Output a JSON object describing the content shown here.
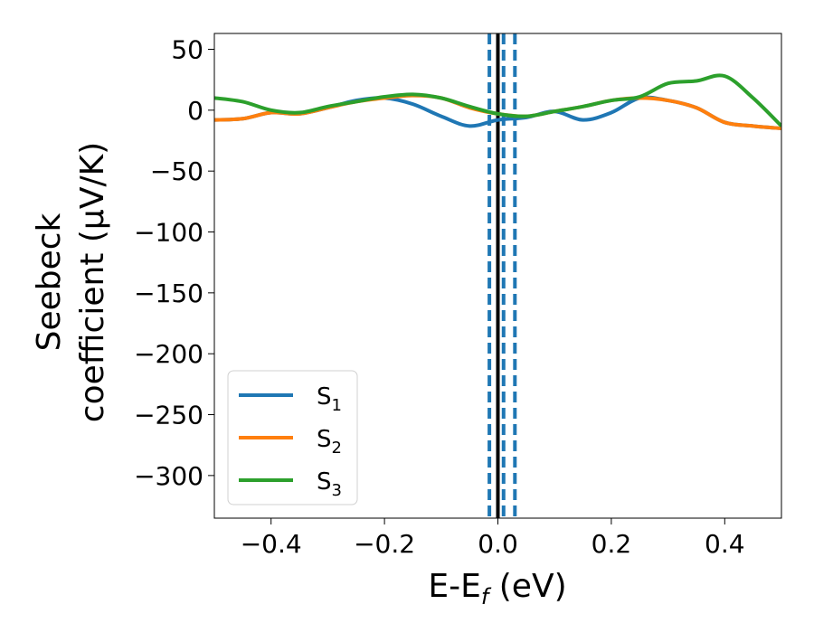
{
  "chart_data": {
    "type": "line",
    "title": "",
    "xlabel": {
      "main": "E-E",
      "sub": "f",
      "tail": " (eV)"
    },
    "ylabel": {
      "line1": "Seebeck",
      "line2": "coefficient  (μV/K)"
    },
    "xlim": [
      -0.5,
      0.5
    ],
    "ylim": [
      -335,
      63
    ],
    "xticks": [
      -0.4,
      -0.2,
      0.0,
      0.2,
      0.4
    ],
    "xtick_labels": [
      "−0.4",
      "−0.2",
      "0.0",
      "0.2",
      "0.4"
    ],
    "yticks": [
      50,
      0,
      -50,
      -100,
      -150,
      -200,
      -250,
      -300
    ],
    "ytick_labels": [
      "50",
      "0",
      "−50",
      "−100",
      "−150",
      "−200",
      "−250",
      "−300"
    ],
    "legend_position": "lower-left",
    "vlines": [
      {
        "x": -0.015,
        "style": "dashed",
        "color": "#1f77b4"
      },
      {
        "x": 0.0,
        "style": "solid",
        "color": "#000000"
      },
      {
        "x": 0.01,
        "style": "dashed",
        "color": "#1f77b4"
      },
      {
        "x": 0.03,
        "style": "dashed",
        "color": "#1f77b4"
      }
    ],
    "series": [
      {
        "name": "S",
        "sub": "1",
        "color": "#1f77b4",
        "x": [
          -0.5,
          -0.45,
          -0.4,
          -0.35,
          -0.3,
          -0.25,
          -0.2,
          -0.15,
          -0.1,
          -0.05,
          0.0,
          0.05,
          0.1,
          0.15,
          0.2,
          0.25,
          0.3,
          0.35,
          0.4,
          0.45,
          0.5
        ],
        "y": [
          -8,
          -7,
          -2,
          -3,
          2,
          8,
          10,
          5,
          -5,
          -13,
          -8,
          -6,
          -1,
          -8,
          -2,
          10,
          8,
          2,
          -10,
          -13,
          -15
        ]
      },
      {
        "name": "S",
        "sub": "2",
        "color": "#ff7f0e",
        "x": [
          -0.5,
          -0.45,
          -0.4,
          -0.35,
          -0.3,
          -0.25,
          -0.2,
          -0.15,
          -0.1,
          -0.05,
          0.0,
          0.05,
          0.1,
          0.15,
          0.2,
          0.25,
          0.3,
          0.35,
          0.4,
          0.45,
          0.5
        ],
        "y": [
          -8,
          -7,
          -2,
          -3,
          2,
          7,
          10,
          12,
          10,
          2,
          -3,
          -5,
          -1,
          3,
          8,
          10,
          8,
          2,
          -10,
          -13,
          -15
        ]
      },
      {
        "name": "S",
        "sub": "3",
        "color": "#2ca02c",
        "x": [
          -0.5,
          -0.45,
          -0.4,
          -0.35,
          -0.3,
          -0.25,
          -0.2,
          -0.15,
          -0.1,
          -0.05,
          0.0,
          0.05,
          0.1,
          0.15,
          0.2,
          0.25,
          0.3,
          0.35,
          0.4,
          0.45,
          0.5
        ],
        "y": [
          10,
          7,
          0,
          -2,
          3,
          7,
          11,
          13,
          10,
          3,
          -3,
          -5,
          -1,
          3,
          8,
          11,
          22,
          24,
          28,
          10,
          -13
        ]
      }
    ]
  }
}
